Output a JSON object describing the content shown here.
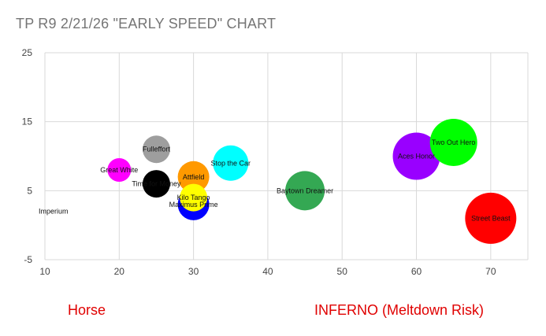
{
  "chart_data": {
    "type": "bubble",
    "title": "TP R9 2/21/26 \"EARLY SPEED\" CHART",
    "xlabel": "Horse",
    "xlabel_secondary": "INFERNO (Meltdown Risk)",
    "ylabel": "",
    "xlim": [
      10,
      75
    ],
    "ylim": [
      -5,
      25
    ],
    "x_ticks": [
      10,
      20,
      30,
      40,
      50,
      60,
      70
    ],
    "y_ticks": [
      -5,
      5,
      15,
      25
    ],
    "grid": true,
    "legend": "none",
    "points": [
      {
        "label": "Imperium",
        "x": 10,
        "y": 2,
        "size": 0,
        "color": "#ffffff"
      },
      {
        "label": "Great White",
        "x": 20,
        "y": 8,
        "size": 3,
        "color": "#ff00ff"
      },
      {
        "label": "Fulleffort",
        "x": 25,
        "y": 11,
        "size": 3.5,
        "color": "#9e9e9e"
      },
      {
        "label": "Time for Money",
        "x": 25,
        "y": 6,
        "size": 3.5,
        "color": "#000000"
      },
      {
        "label": "Attfield",
        "x": 30,
        "y": 7,
        "size": 4,
        "color": "#ff9900"
      },
      {
        "label": "Kilo Tango",
        "x": 30,
        "y": 4,
        "size": 3.5,
        "color": "#ffff00"
      },
      {
        "label": "Maximus Prime",
        "x": 30,
        "y": 3,
        "size": 4,
        "color": "#0000ff"
      },
      {
        "label": "Stop the Car",
        "x": 35,
        "y": 9,
        "size": 4.5,
        "color": "#00ffff"
      },
      {
        "label": "Baytown Dreamer",
        "x": 45,
        "y": 5,
        "size": 5,
        "color": "#34a853"
      },
      {
        "label": "Aces Honor",
        "x": 60,
        "y": 10,
        "size": 6,
        "color": "#9900ff"
      },
      {
        "label": "Two Out Hero",
        "x": 65,
        "y": 12,
        "size": 6,
        "color": "#00ff00"
      },
      {
        "label": "Street Beast",
        "x": 70,
        "y": 1,
        "size": 6.5,
        "color": "#ff0000"
      }
    ]
  }
}
